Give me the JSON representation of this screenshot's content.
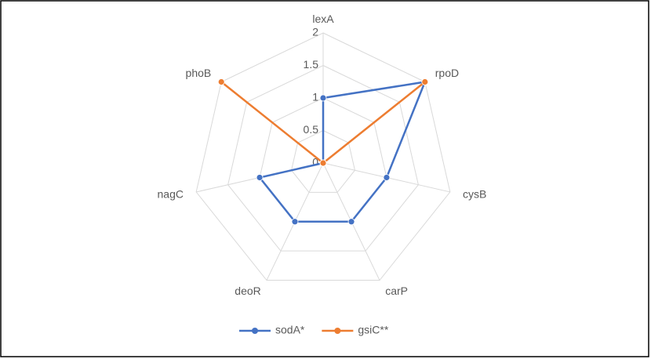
{
  "chart_data": {
    "type": "radar",
    "categories": [
      "lexA",
      "rpoD",
      "cysB",
      "carP",
      "deoR",
      "nagC",
      "phoB"
    ],
    "series": [
      {
        "name": "sodA*",
        "color": "#4472c4",
        "values": [
          1,
          2,
          1,
          1,
          1,
          1,
          0
        ]
      },
      {
        "name": "gsiC**",
        "color": "#ed7d31",
        "values": [
          0,
          2,
          0,
          0,
          0,
          0,
          2
        ]
      }
    ],
    "ylim": [
      0,
      2
    ],
    "yticks": [
      0,
      0.5,
      1,
      1.5,
      2
    ],
    "grid": true,
    "legend": "bottom"
  }
}
